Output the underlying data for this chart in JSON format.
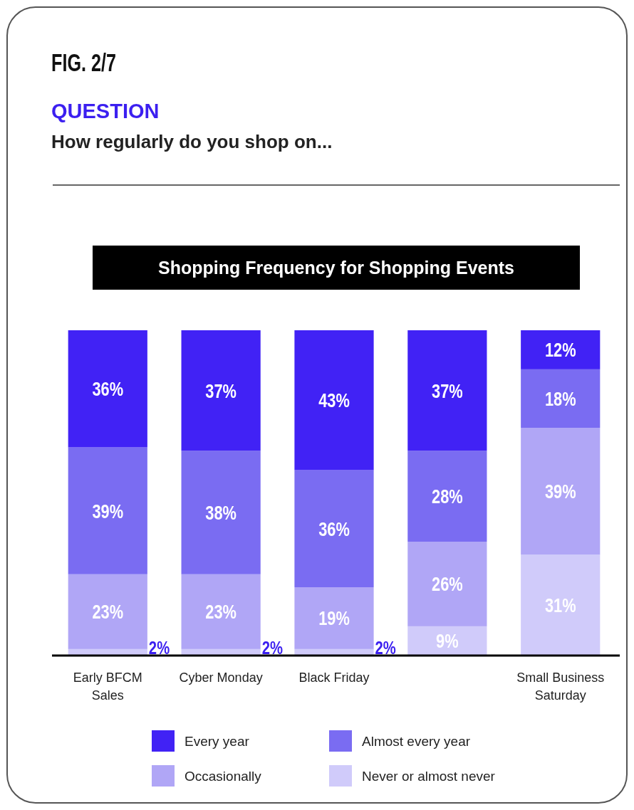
{
  "chart_data": {
    "type": "bar",
    "stacked": true,
    "title": "Shopping Frequency for Shopping Events",
    "annotations": [
      "FIG. 2/7",
      "QUESTION",
      "How regularly do you shop on..."
    ],
    "categories": [
      "Early BFCM\nSales",
      "Cyber Monday",
      "Black Friday",
      null,
      "Small Business\nSaturday"
    ],
    "legend": "bottom",
    "series": [
      {
        "name": "Never or almost never",
        "color": "#d0cbfa",
        "values": [
          2,
          2,
          2,
          9,
          31
        ],
        "value_labels": [
          "2%",
          "2%",
          "2%",
          "9%",
          "31%"
        ]
      },
      {
        "name": "Occasionally",
        "color": "#b0a6f6",
        "values": [
          23,
          23,
          19,
          26,
          39
        ],
        "value_labels": [
          "23%",
          "23%",
          "19%",
          "26%",
          "39%"
        ]
      },
      {
        "name": "Almost every year",
        "color": "#7a6cf2",
        "values": [
          39,
          38,
          36,
          28,
          18
        ],
        "value_labels": [
          "39%",
          "38%",
          "36%",
          "28%",
          "18%"
        ]
      },
      {
        "name": "Every year",
        "color": "#4122f5",
        "values": [
          36,
          37,
          43,
          37,
          12
        ],
        "value_labels": [
          "36%",
          "37%",
          "43%",
          "37%",
          "12%"
        ]
      }
    ]
  }
}
